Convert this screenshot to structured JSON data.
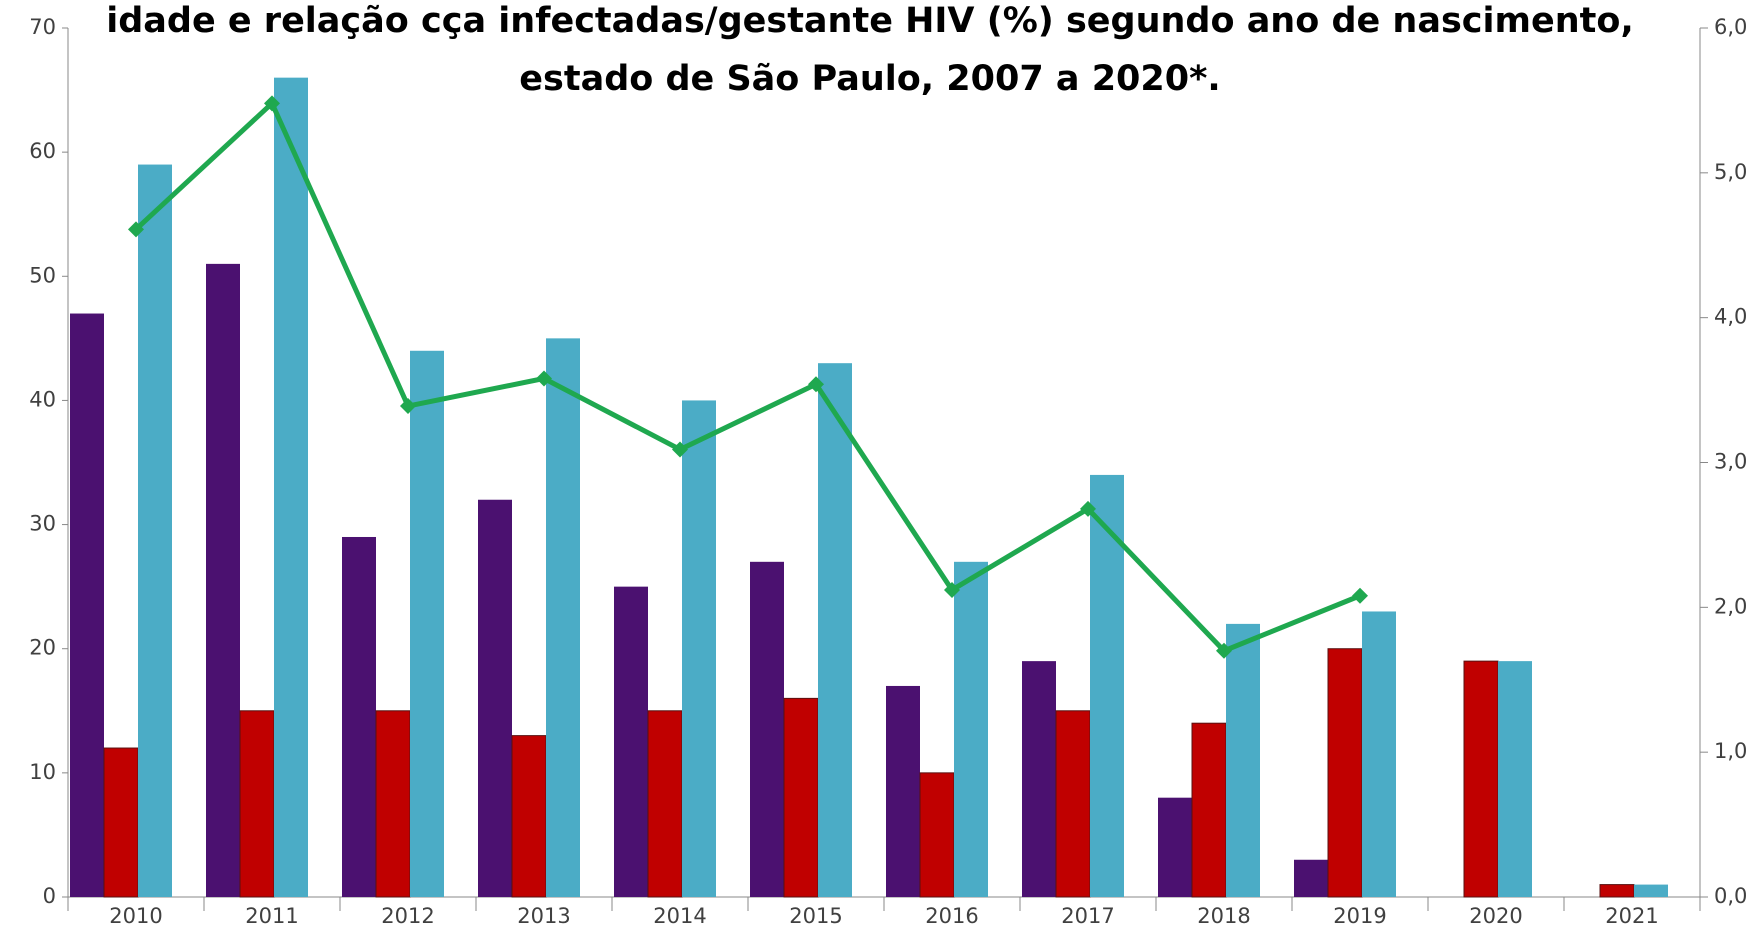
{
  "chart_data": {
    "type": "bar_line",
    "title_lines": [
      "idade e relação cça infectadas/gestante HIV (%) segundo ano de nascimento,",
      "estado de São Paulo, 2007 a 2020*."
    ],
    "categories": [
      "2010",
      "2011",
      "2012",
      "2013",
      "2014",
      "2015",
      "2016",
      "2017",
      "2018",
      "2019",
      "2020",
      "2021"
    ],
    "series": [
      {
        "type": "bar",
        "color": "#4b1170",
        "values": [
          47,
          51,
          29,
          32,
          25,
          27,
          17,
          19,
          8,
          3,
          null,
          null
        ]
      },
      {
        "type": "bar",
        "color": "#c00000",
        "values": [
          12,
          15,
          15,
          13,
          15,
          16,
          10,
          15,
          14,
          20,
          19,
          1
        ]
      },
      {
        "type": "bar",
        "color": "#4bacc6",
        "values": [
          59,
          66,
          44,
          45,
          40,
          43,
          27,
          34,
          22,
          23,
          19,
          1
        ]
      },
      {
        "type": "line",
        "axis": "y2",
        "color": "#1fa84f",
        "values": [
          4.61,
          5.48,
          3.39,
          3.58,
          3.09,
          3.54,
          2.12,
          2.68,
          1.7,
          2.08,
          null,
          null
        ]
      }
    ],
    "ylim": [
      0,
      70
    ],
    "yticks": [
      0,
      10,
      20,
      30,
      40,
      50,
      60,
      70
    ],
    "y2lim": [
      0,
      6
    ],
    "y2ticks": [
      {
        "value": 0,
        "label": "0,0"
      },
      {
        "value": 1,
        "label": "1,0"
      },
      {
        "value": 2,
        "label": "2,0"
      },
      {
        "value": 3,
        "label": "3,0"
      },
      {
        "value": 4,
        "label": "4,0"
      },
      {
        "value": 5,
        "label": "5,0"
      },
      {
        "value": 6,
        "label": "6,0"
      }
    ]
  }
}
